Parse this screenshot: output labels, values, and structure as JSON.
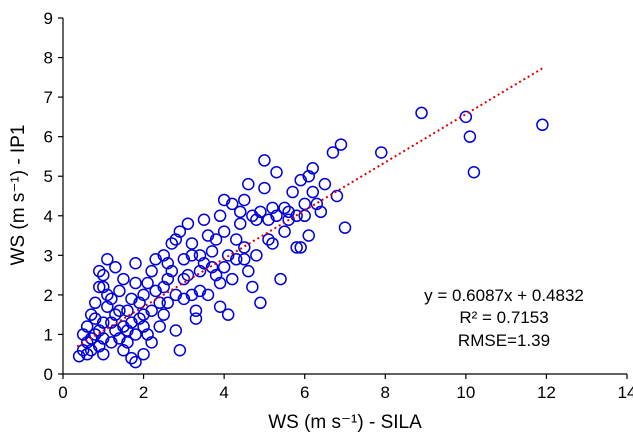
{
  "chart_data": {
    "type": "scatter",
    "title": "",
    "xlabel": "WS (m s⁻¹) - SILA",
    "ylabel": "WS (m s⁻¹) - IP1",
    "xlim": [
      0,
      14
    ],
    "ylim": [
      0,
      9
    ],
    "xticks": [
      "0",
      "2",
      "4",
      "6",
      "8",
      "10",
      "12",
      "14"
    ],
    "yticks": [
      "0",
      "1",
      "2",
      "3",
      "4",
      "5",
      "6",
      "7",
      "8",
      "9"
    ],
    "grid": false,
    "legend": "none",
    "colors": {
      "points": "#0000dd",
      "trendline": "#dd0000",
      "axis": "#000000"
    },
    "trendline": {
      "slope": 0.6087,
      "intercept": 0.4832,
      "x_range": [
        0.35,
        11.9
      ],
      "style": "dotted"
    },
    "annotations": {
      "equation": "y = 0.6087x + 0.4832",
      "r2": "R² = 0.7153",
      "rmse": "RMSE=1.39"
    },
    "series": [
      {
        "points": [
          [
            0.4,
            0.45
          ],
          [
            0.5,
            0.6
          ],
          [
            0.6,
            0.8
          ],
          [
            0.7,
            0.9
          ],
          [
            0.8,
            1.0
          ],
          [
            0.9,
            0.7
          ],
          [
            1.0,
            0.5
          ],
          [
            0.6,
            1.2
          ],
          [
            0.7,
            1.5
          ],
          [
            0.8,
            1.8
          ],
          [
            0.9,
            2.2
          ],
          [
            1.0,
            2.5
          ],
          [
            1.1,
            2.9
          ],
          [
            0.9,
            2.6
          ],
          [
            1.2,
            1.3
          ],
          [
            1.3,
            1.1
          ],
          [
            1.4,
            0.9
          ],
          [
            1.5,
            0.6
          ],
          [
            1.7,
            0.4
          ],
          [
            1.8,
            0.3
          ],
          [
            2.0,
            0.5
          ],
          [
            1.6,
            1.6
          ],
          [
            1.7,
            1.9
          ],
          [
            1.8,
            2.3
          ],
          [
            1.9,
            1.4
          ],
          [
            2.0,
            1.2
          ],
          [
            2.1,
            1.0
          ],
          [
            2.2,
            2.6
          ],
          [
            2.3,
            2.1
          ],
          [
            2.4,
            1.8
          ],
          [
            2.5,
            1.5
          ],
          [
            2.6,
            2.8
          ],
          [
            2.7,
            3.3
          ],
          [
            2.8,
            1.1
          ],
          [
            2.9,
            0.6
          ],
          [
            3.0,
            2.4
          ],
          [
            3.1,
            3.8
          ],
          [
            3.2,
            2.0
          ],
          [
            3.3,
            1.6
          ],
          [
            3.4,
            3.0
          ],
          [
            3.5,
            2.8
          ],
          [
            3.6,
            3.5
          ],
          [
            3.7,
            3.1
          ],
          [
            3.8,
            2.5
          ],
          [
            3.9,
            2.3
          ],
          [
            4.0,
            3.6
          ],
          [
            4.1,
            1.5
          ],
          [
            4.2,
            4.3
          ],
          [
            4.3,
            2.9
          ],
          [
            4.4,
            4.1
          ],
          [
            4.5,
            3.2
          ],
          [
            4.6,
            4.8
          ],
          [
            4.7,
            2.2
          ],
          [
            4.8,
            3.9
          ],
          [
            4.9,
            1.8
          ],
          [
            5.0,
            4.7
          ],
          [
            5.1,
            3.4
          ],
          [
            5.2,
            4.2
          ],
          [
            5.3,
            4.0
          ],
          [
            5.4,
            2.4
          ],
          [
            5.5,
            3.6
          ],
          [
            5.6,
            4.1
          ],
          [
            5.7,
            4.6
          ],
          [
            5.8,
            3.2
          ],
          [
            5.9,
            4.9
          ],
          [
            6.0,
            4.0
          ],
          [
            6.1,
            3.5
          ],
          [
            6.2,
            5.2
          ],
          [
            6.3,
            4.3
          ],
          [
            6.5,
            4.8
          ],
          [
            6.7,
            5.6
          ],
          [
            6.8,
            4.5
          ],
          [
            6.9,
            5.8
          ],
          [
            7.0,
            3.7
          ],
          [
            7.9,
            5.6
          ],
          [
            8.9,
            6.6
          ],
          [
            10.0,
            6.5
          ],
          [
            10.1,
            6.0
          ],
          [
            10.2,
            5.1
          ],
          [
            11.9,
            6.3
          ],
          [
            1.0,
            1.3
          ],
          [
            1.2,
            0.8
          ],
          [
            1.4,
            2.1
          ],
          [
            1.6,
            1.1
          ],
          [
            0.8,
            1.4
          ],
          [
            1.1,
            1.7
          ],
          [
            1.5,
            2.4
          ],
          [
            2.2,
            1.6
          ],
          [
            2.5,
            2.2
          ],
          [
            3.0,
            2.9
          ],
          [
            3.2,
            3.3
          ],
          [
            2.7,
            2.6
          ],
          [
            3.6,
            2.0
          ],
          [
            4.0,
            2.7
          ],
          [
            4.5,
            4.4
          ],
          [
            5.0,
            5.4
          ],
          [
            0.5,
            1.0
          ],
          [
            0.7,
            0.6
          ],
          [
            1.3,
            1.5
          ],
          [
            1.9,
            1.8
          ],
          [
            2.3,
            2.9
          ],
          [
            2.8,
            2.0
          ],
          [
            3.4,
            2.6
          ],
          [
            3.8,
            3.4
          ],
          [
            4.2,
            2.4
          ],
          [
            4.8,
            3.0
          ],
          [
            5.5,
            4.2
          ],
          [
            6.0,
            4.3
          ],
          [
            1.0,
            0.9
          ],
          [
            1.2,
            1.9
          ],
          [
            1.7,
            1.3
          ],
          [
            2.1,
            2.3
          ],
          [
            2.4,
            1.2
          ],
          [
            2.9,
            3.6
          ],
          [
            3.3,
            1.4
          ],
          [
            3.9,
            4.0
          ],
          [
            4.4,
            3.8
          ],
          [
            0.9,
            1.1
          ],
          [
            1.5,
            1.2
          ],
          [
            1.8,
            1.0
          ],
          [
            2.0,
            2.0
          ],
          [
            2.6,
            1.8
          ],
          [
            3.1,
            2.5
          ],
          [
            3.5,
            3.9
          ],
          [
            4.1,
            3.0
          ],
          [
            4.6,
            2.6
          ],
          [
            5.2,
            3.3
          ],
          [
            5.8,
            4.0
          ],
          [
            6.4,
            4.1
          ],
          [
            0.6,
            0.5
          ],
          [
            1.1,
            2.0
          ],
          [
            1.4,
            1.6
          ],
          [
            2.2,
            0.8
          ],
          [
            2.5,
            3.0
          ],
          [
            3.0,
            1.9
          ],
          [
            3.7,
            2.7
          ],
          [
            4.3,
            3.4
          ],
          [
            4.9,
            4.1
          ],
          [
            5.6,
            3.9
          ],
          [
            6.2,
            4.6
          ],
          [
            1.3,
            2.7
          ],
          [
            1.8,
            2.8
          ],
          [
            2.6,
            2.4
          ],
          [
            3.2,
            3.0
          ],
          [
            3.9,
            1.7
          ],
          [
            4.7,
            4.0
          ],
          [
            5.3,
            5.1
          ],
          [
            6.1,
            5.0
          ],
          [
            1.0,
            2.2
          ],
          [
            1.6,
            0.8
          ],
          [
            2.0,
            1.5
          ],
          [
            2.8,
            3.4
          ],
          [
            3.4,
            2.1
          ],
          [
            4.0,
            4.4
          ],
          [
            4.5,
            2.9
          ],
          [
            5.1,
            3.9
          ],
          [
            5.9,
            3.2
          ]
        ]
      }
    ]
  }
}
